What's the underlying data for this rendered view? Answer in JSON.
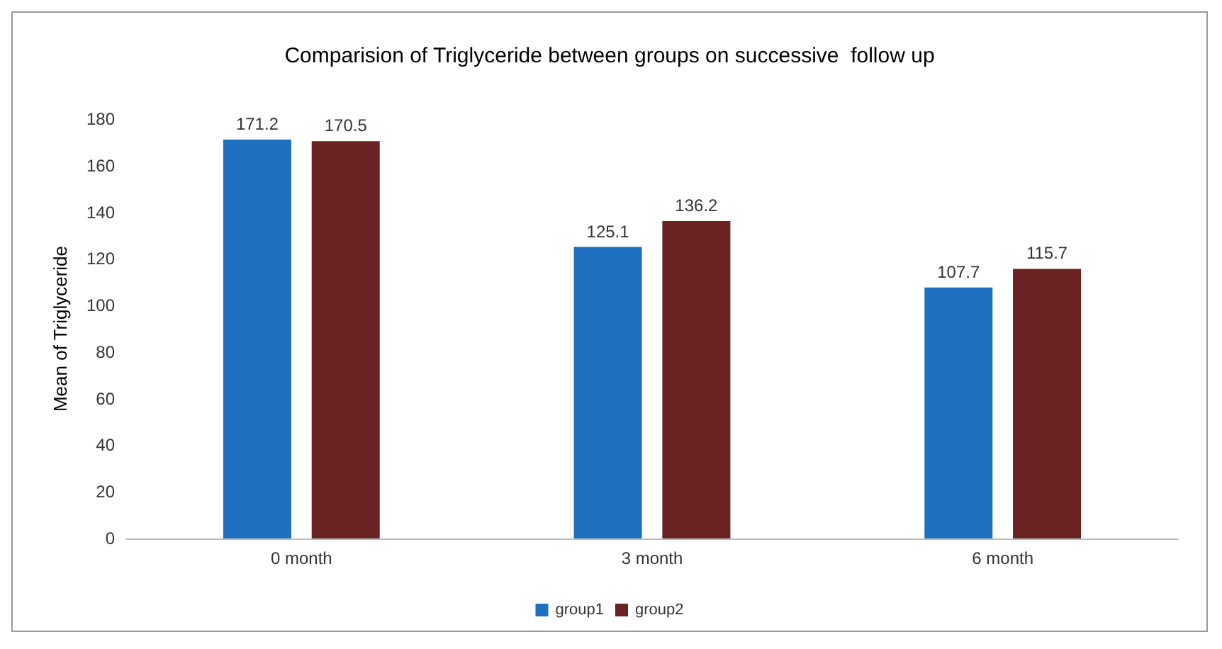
{
  "chart_data": {
    "type": "bar",
    "title": "Comparision of Triglyceride between groups on successive  follow up",
    "ylabel": "Mean of Triglyceride",
    "categories": [
      "0 month",
      "3 month",
      "6 month"
    ],
    "series": [
      {
        "name": "group1",
        "color": "#1f6fc1",
        "values": [
          171.2,
          125.1,
          107.7
        ]
      },
      {
        "name": "group2",
        "color": "#6b2222",
        "values": [
          170.5,
          136.2,
          115.7
        ]
      }
    ],
    "ylim": [
      0,
      180
    ],
    "yticks": [
      0,
      20,
      40,
      60,
      80,
      100,
      120,
      140,
      160,
      180
    ],
    "grid": false,
    "legend": "bottom",
    "data_labels": true
  }
}
